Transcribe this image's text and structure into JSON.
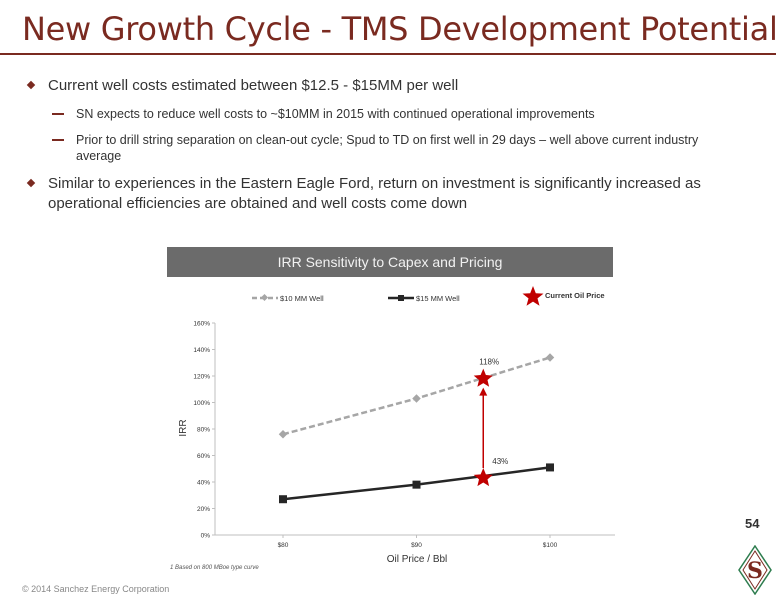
{
  "slide": {
    "title": "New Growth Cycle - TMS Development Potential",
    "bullets": [
      {
        "text": "Current well costs estimated between $12.5 - $15MM per well",
        "sub": [
          "SN expects to reduce well costs to ~$10MM in 2015 with continued operational improvements",
          "Prior to drill string separation on clean-out cycle; Spud to TD on first well in 29 days – well above current industry average"
        ]
      },
      {
        "text": "Similar to experiences in the Eastern Eagle Ford, return on investment is significantly increased as operational efficiencies are obtained and well costs come down",
        "sub": []
      }
    ],
    "page_number": "54",
    "footnote": "1    Based on 800 MBoe type curve",
    "copyright": "© 2014 Sanchez Energy Corporation",
    "logo_letter": "S"
  },
  "colors": {
    "brand": "#7a2a20",
    "header_bg": "#6b6b6b",
    "series_10mm": "#a6a6a6",
    "series_15mm": "#262626",
    "marker": "#c00000"
  },
  "chart_data": {
    "type": "line",
    "header": "IRR Sensitivity to Capex and Pricing",
    "xlabel": "Oil Price / Bbl",
    "ylabel": "IRR",
    "x": [
      80,
      90,
      100
    ],
    "x_tick_labels": [
      "$80",
      "$90",
      "$100"
    ],
    "xlim": [
      80,
      100
    ],
    "ylim": [
      0,
      160
    ],
    "y_ticks": [
      0,
      20,
      40,
      60,
      80,
      100,
      120,
      140,
      160
    ],
    "y_tick_labels": [
      "0%",
      "20%",
      "40%",
      "60%",
      "80%",
      "100%",
      "120%",
      "140%",
      "160%"
    ],
    "series": [
      {
        "name": "$10 MM Well",
        "style": "dashed",
        "marker": "diamond",
        "values": [
          76,
          103,
          134
        ]
      },
      {
        "name": "$15 MM Well",
        "style": "solid",
        "marker": "square",
        "values": [
          27,
          38,
          51
        ]
      }
    ],
    "current_price": {
      "name": "Current Oil Price",
      "x": 95,
      "points": [
        {
          "y": 118,
          "label": "118%"
        },
        {
          "y": 43,
          "label": "43%"
        }
      ]
    },
    "legend_placement": "top",
    "grid": false
  }
}
